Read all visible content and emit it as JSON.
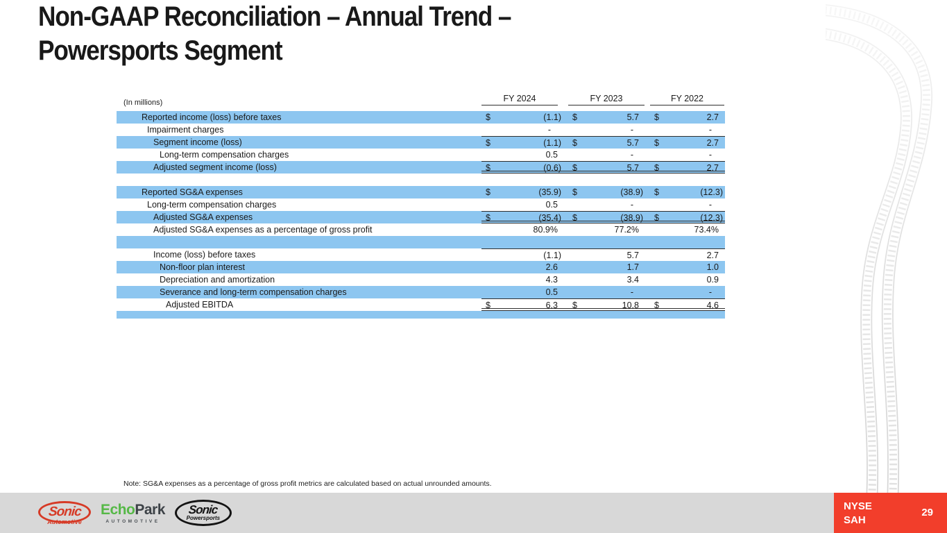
{
  "slide": {
    "title_line1": "Non-GAAP Reconciliation – Annual Trend –",
    "title_line2": "Powersports Segment",
    "note": "Note: SG&A expenses as a percentage of gross profit metrics are calculated based on actual unrounded amounts."
  },
  "table": {
    "units_label": "(In millions)",
    "columns": [
      "FY 2024",
      "FY 2023",
      "FY 2022"
    ],
    "rows": [
      {
        "label": "Reported income (loss) before taxes",
        "indent": 1,
        "bg": "blue",
        "cells": [
          [
            "$",
            "(1.1)"
          ],
          [
            "$",
            "5.7"
          ],
          [
            "$",
            "2.7"
          ]
        ]
      },
      {
        "label": "Impairment charges",
        "indent": 2,
        "bg": "white",
        "cells": [
          [
            "",
            "-"
          ],
          [
            "",
            "-"
          ],
          [
            "",
            "-"
          ]
        ]
      },
      {
        "label": "Segment income (loss)",
        "indent": 3,
        "bg": "blue",
        "top": true,
        "cells": [
          [
            "$",
            "(1.1)"
          ],
          [
            "$",
            "5.7"
          ],
          [
            "$",
            "2.7"
          ]
        ]
      },
      {
        "label": "Long-term compensation charges",
        "indent": 4,
        "bg": "white",
        "cells": [
          [
            "",
            "0.5"
          ],
          [
            "",
            "-"
          ],
          [
            "",
            "-"
          ]
        ]
      },
      {
        "label": "Adjusted segment income (loss)",
        "indent": 3,
        "bg": "blue",
        "top": true,
        "bottom": "double",
        "cells": [
          [
            "$",
            "(0.6)"
          ],
          [
            "$",
            "5.7"
          ],
          [
            "$",
            "2.7"
          ]
        ]
      },
      {
        "blank": true,
        "bg": "white"
      },
      {
        "label": "Reported SG&A expenses",
        "indent": 1,
        "bg": "blue",
        "cells": [
          [
            "$",
            "(35.9)"
          ],
          [
            "$",
            "(38.9)"
          ],
          [
            "$",
            "(12.3)"
          ]
        ]
      },
      {
        "label": "Long-term compensation charges",
        "indent": 2,
        "bg": "white",
        "cells": [
          [
            "",
            "0.5"
          ],
          [
            "",
            "-"
          ],
          [
            "",
            "-"
          ]
        ]
      },
      {
        "label": "Adjusted SG&A expenses",
        "indent": 3,
        "bg": "blue",
        "top": true,
        "bottom": "double",
        "cells": [
          [
            "$",
            "(35.4)"
          ],
          [
            "$",
            "(38.9)"
          ],
          [
            "$",
            "(12.3)"
          ]
        ]
      },
      {
        "label": "Adjusted SG&A expenses as a percentage of gross profit",
        "indent": 3,
        "bg": "white",
        "cells": [
          [
            "",
            "80.9%"
          ],
          [
            "",
            "77.2%"
          ],
          [
            "",
            "73.4%"
          ]
        ]
      },
      {
        "blank": true,
        "bg": "blue"
      },
      {
        "label": "Income (loss) before taxes",
        "indent": 3,
        "bg": "white",
        "top": true,
        "cells": [
          [
            "",
            "(1.1)"
          ],
          [
            "",
            "5.7"
          ],
          [
            "",
            "2.7"
          ]
        ]
      },
      {
        "label": "Non-floor plan interest",
        "indent": 4,
        "bg": "blue",
        "cells": [
          [
            "",
            "2.6"
          ],
          [
            "",
            "1.7"
          ],
          [
            "",
            "1.0"
          ]
        ]
      },
      {
        "label": "Depreciation and amortization",
        "indent": 4,
        "bg": "white",
        "cells": [
          [
            "",
            "4.3"
          ],
          [
            "",
            "3.4"
          ],
          [
            "",
            "0.9"
          ]
        ]
      },
      {
        "label": "Severance and long-term compensation charges",
        "indent": 4,
        "bg": "blue",
        "cells": [
          [
            "",
            "0.5"
          ],
          [
            "",
            "-"
          ],
          [
            "",
            "-"
          ]
        ]
      },
      {
        "label": "Adjusted EBITDA",
        "indent": 5,
        "bg": "white",
        "top": true,
        "bottom": "double",
        "cells": [
          [
            "$",
            "6.3"
          ],
          [
            "$",
            "10.8"
          ],
          [
            "$",
            "4.6"
          ]
        ]
      },
      {
        "blank": true,
        "bg": "blue",
        "short": true
      }
    ]
  },
  "footer": {
    "logos": [
      {
        "name": "sonic-automotive",
        "text": "Sonic",
        "subtext": "Automotive"
      },
      {
        "name": "echopark-automotive",
        "text_green": "Echo",
        "text_dark": "Park",
        "subtext": "AUTOMOTIVE"
      },
      {
        "name": "sonic-powersports",
        "text": "Sonic",
        "subtext": "Powersports"
      }
    ],
    "ticker_exchange": "NYSE",
    "ticker_symbol": "SAH",
    "page_number": "29"
  },
  "colors": {
    "row_highlight": "#8DC6F0",
    "accent_red": "#F23E2B",
    "footer_bar": "#D8D8D8",
    "sonic_red": "#D63A26",
    "echopark_green": "#56B847",
    "echopark_dark": "#3D4247",
    "rule_line": "#2F2F2F"
  }
}
